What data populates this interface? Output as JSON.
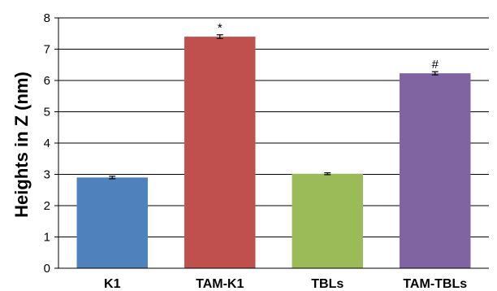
{
  "chart_data": {
    "type": "bar",
    "title": "",
    "xlabel": "",
    "ylabel": "Heights in Z (nm)",
    "ylim": [
      0,
      8
    ],
    "yticks": [
      "0",
      "1",
      "2",
      "3",
      "4",
      "5",
      "6",
      "7",
      "8"
    ],
    "grid": true,
    "categories": [
      "K1",
      "TAM-K1",
      "TBLs",
      "TAM-TBLs"
    ],
    "values": [
      2.9,
      7.4,
      3.02,
      6.23
    ],
    "errors": [
      0.04,
      0.06,
      0.03,
      0.05
    ],
    "annotations": [
      "",
      "*",
      "",
      "#"
    ],
    "colors": [
      "#4f81bd",
      "#c0504d",
      "#9bbb59",
      "#8064a2"
    ]
  }
}
